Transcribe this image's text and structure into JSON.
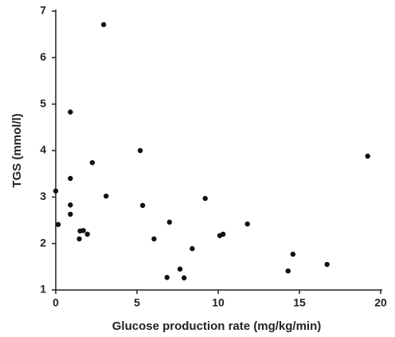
{
  "chart_data": {
    "type": "scatter",
    "xlabel": "Glucose production rate (mg/kg/min)",
    "ylabel": "TGS (mmol/l)",
    "x": [
      0,
      0.15,
      0.9,
      0.9,
      0.9,
      0.9,
      2.95,
      1.5,
      1.7,
      1.45,
      1.95,
      2.25,
      3.1,
      5.2,
      5.35,
      6.05,
      7.0,
      6.85,
      7.65,
      7.9,
      8.4,
      9.2,
      10.1,
      10.3,
      11.8,
      14.3,
      14.6,
      16.7,
      19.2
    ],
    "values": [
      3.13,
      2.41,
      4.83,
      3.4,
      2.83,
      2.63,
      6.71,
      2.27,
      2.28,
      2.1,
      2.2,
      3.74,
      3.02,
      4.0,
      2.82,
      2.1,
      2.46,
      1.27,
      1.45,
      1.26,
      1.89,
      2.97,
      2.17,
      2.2,
      2.42,
      1.41,
      1.77,
      1.55,
      3.88
    ],
    "color": "#111111",
    "xlim": [
      0,
      20
    ],
    "xticks": [
      0,
      5,
      10,
      15,
      20
    ],
    "ylim": [
      1,
      7
    ],
    "yticks": [
      1,
      2,
      3,
      4,
      5,
      6,
      7
    ]
  }
}
